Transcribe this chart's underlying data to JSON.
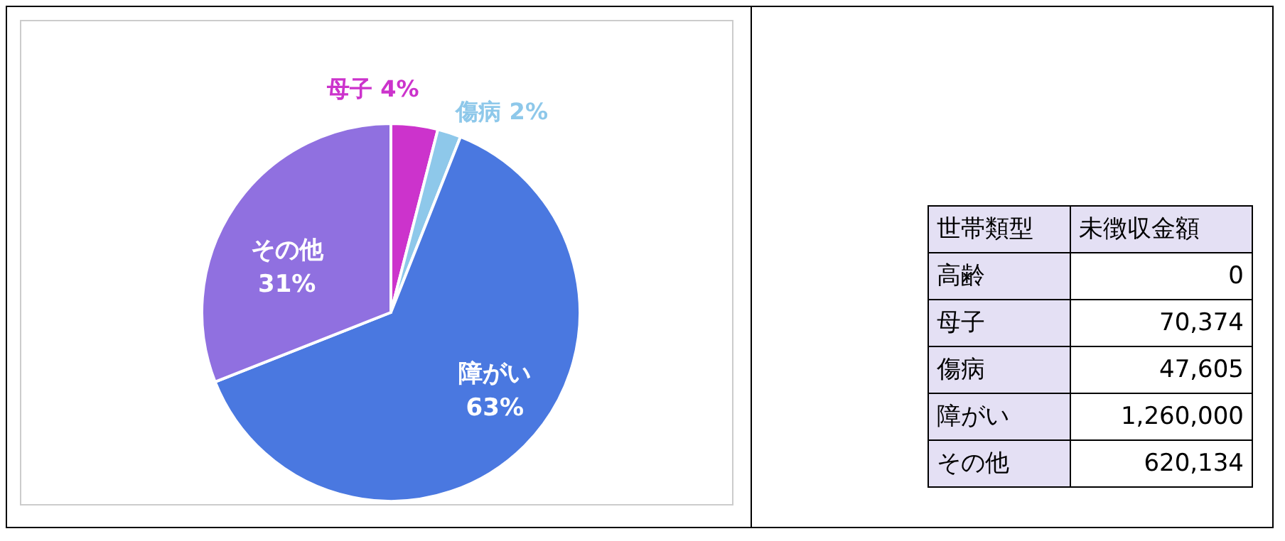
{
  "chart_data": [
    {
      "type": "pie",
      "categories": [
        null,
        "母子",
        "傷病",
        "障がい",
        "その他"
      ],
      "values": [
        0,
        4,
        2,
        63,
        31
      ],
      "colors": [
        "#4472c4",
        "#cc33cc",
        "#8ec8ea",
        "#4a78e0",
        "#9070e0"
      ],
      "value_labels": [
        null,
        "4%",
        "2%",
        "63%",
        "31%"
      ]
    },
    {
      "type": "other",
      "annotations": [
        "世帯類型",
        "未徴収金額"
      ],
      "categories": [
        "高齢",
        "母子",
        "傷病",
        "障がい",
        "その他"
      ],
      "values": [
        0,
        70374,
        47605,
        1260000,
        620134
      ],
      "value_labels": [
        "0",
        "70,374",
        "47,605",
        "1,260,000",
        "620,134"
      ]
    }
  ]
}
